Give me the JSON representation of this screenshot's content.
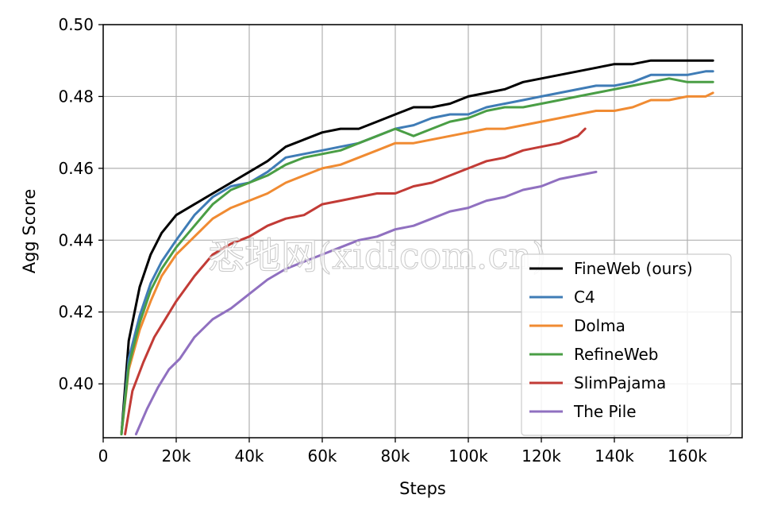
{
  "chart_data": {
    "type": "line",
    "xlabel": "Steps",
    "ylabel": "Agg Score",
    "xlim": [
      0,
      175000
    ],
    "ylim": [
      0.385,
      0.5
    ],
    "xticks": [
      0,
      20000,
      40000,
      60000,
      80000,
      100000,
      120000,
      140000,
      160000
    ],
    "xtick_labels": [
      "0",
      "20k",
      "40k",
      "60k",
      "80k",
      "100k",
      "120k",
      "140k",
      "160k"
    ],
    "yticks": [
      0.4,
      0.42,
      0.44,
      0.46,
      0.48,
      0.5
    ],
    "ytick_labels": [
      "0.40",
      "0.42",
      "0.44",
      "0.46",
      "0.48",
      "0.50"
    ],
    "grid": true,
    "legend_position": "bottom-right",
    "series": [
      {
        "name": "FineWeb (ours)",
        "color": "#000000",
        "x": [
          5000,
          7000,
          10000,
          13000,
          16000,
          20000,
          25000,
          30000,
          35000,
          40000,
          45000,
          50000,
          55000,
          60000,
          65000,
          70000,
          75000,
          80000,
          85000,
          90000,
          95000,
          100000,
          105000,
          110000,
          115000,
          120000,
          125000,
          130000,
          135000,
          140000,
          145000,
          150000,
          155000,
          160000,
          165000,
          167000
        ],
        "y": [
          0.386,
          0.412,
          0.427,
          0.436,
          0.442,
          0.447,
          0.45,
          0.453,
          0.456,
          0.459,
          0.462,
          0.466,
          0.468,
          0.47,
          0.471,
          0.471,
          0.473,
          0.475,
          0.477,
          0.477,
          0.478,
          0.48,
          0.481,
          0.482,
          0.484,
          0.485,
          0.486,
          0.487,
          0.488,
          0.489,
          0.489,
          0.49,
          0.49,
          0.49,
          0.49,
          0.49
        ]
      },
      {
        "name": "C4",
        "color": "#3f7cb6",
        "x": [
          5000,
          7000,
          10000,
          13000,
          16000,
          20000,
          25000,
          30000,
          35000,
          40000,
          45000,
          50000,
          55000,
          60000,
          65000,
          70000,
          75000,
          80000,
          85000,
          90000,
          95000,
          100000,
          105000,
          110000,
          115000,
          120000,
          125000,
          130000,
          135000,
          140000,
          145000,
          150000,
          155000,
          160000,
          165000,
          167000
        ],
        "y": [
          0.386,
          0.407,
          0.419,
          0.428,
          0.434,
          0.44,
          0.447,
          0.452,
          0.455,
          0.456,
          0.459,
          0.463,
          0.464,
          0.465,
          0.466,
          0.467,
          0.469,
          0.471,
          0.472,
          0.474,
          0.475,
          0.475,
          0.477,
          0.478,
          0.479,
          0.48,
          0.481,
          0.482,
          0.483,
          0.483,
          0.484,
          0.486,
          0.486,
          0.486,
          0.487,
          0.487
        ]
      },
      {
        "name": "Dolma",
        "color": "#f08b32",
        "x": [
          5000,
          7000,
          10000,
          13000,
          16000,
          20000,
          25000,
          30000,
          35000,
          40000,
          45000,
          50000,
          55000,
          60000,
          65000,
          70000,
          75000,
          80000,
          85000,
          90000,
          95000,
          100000,
          105000,
          110000,
          115000,
          120000,
          125000,
          130000,
          135000,
          140000,
          145000,
          150000,
          155000,
          160000,
          165000,
          167000
        ],
        "y": [
          0.386,
          0.404,
          0.415,
          0.423,
          0.43,
          0.436,
          0.441,
          0.446,
          0.449,
          0.451,
          0.453,
          0.456,
          0.458,
          0.46,
          0.461,
          0.463,
          0.465,
          0.467,
          0.467,
          0.468,
          0.469,
          0.47,
          0.471,
          0.471,
          0.472,
          0.473,
          0.474,
          0.475,
          0.476,
          0.476,
          0.477,
          0.479,
          0.479,
          0.48,
          0.48,
          0.481
        ]
      },
      {
        "name": "RefineWeb",
        "color": "#4a9e45",
        "x": [
          5000,
          7000,
          10000,
          13000,
          16000,
          20000,
          25000,
          30000,
          35000,
          40000,
          45000,
          50000,
          55000,
          60000,
          65000,
          70000,
          75000,
          80000,
          85000,
          90000,
          95000,
          100000,
          105000,
          110000,
          115000,
          120000,
          125000,
          130000,
          135000,
          140000,
          145000,
          150000,
          155000,
          160000,
          165000,
          167000
        ],
        "y": [
          0.386,
          0.405,
          0.417,
          0.426,
          0.432,
          0.438,
          0.444,
          0.45,
          0.454,
          0.456,
          0.458,
          0.461,
          0.463,
          0.464,
          0.465,
          0.467,
          0.469,
          0.471,
          0.469,
          0.471,
          0.473,
          0.474,
          0.476,
          0.477,
          0.477,
          0.478,
          0.479,
          0.48,
          0.481,
          0.482,
          0.483,
          0.484,
          0.485,
          0.484,
          0.484,
          0.484
        ]
      },
      {
        "name": "SlimPajama",
        "color": "#c23b36",
        "x": [
          6000,
          8000,
          11000,
          14000,
          17000,
          20000,
          25000,
          30000,
          35000,
          40000,
          45000,
          50000,
          55000,
          60000,
          65000,
          70000,
          75000,
          80000,
          85000,
          90000,
          95000,
          100000,
          105000,
          110000,
          115000,
          120000,
          125000,
          130000,
          132000
        ],
        "y": [
          0.386,
          0.398,
          0.406,
          0.413,
          0.418,
          0.423,
          0.43,
          0.436,
          0.439,
          0.441,
          0.444,
          0.446,
          0.447,
          0.45,
          0.451,
          0.452,
          0.453,
          0.453,
          0.455,
          0.456,
          0.458,
          0.46,
          0.462,
          0.463,
          0.465,
          0.466,
          0.467,
          0.469,
          0.471
        ]
      },
      {
        "name": "The Pile",
        "color": "#9070c0",
        "x": [
          9000,
          12000,
          15000,
          18000,
          21000,
          25000,
          30000,
          35000,
          40000,
          45000,
          50000,
          55000,
          60000,
          65000,
          70000,
          75000,
          80000,
          85000,
          90000,
          95000,
          100000,
          105000,
          110000,
          115000,
          120000,
          125000,
          130000,
          135000
        ],
        "y": [
          0.386,
          0.393,
          0.399,
          0.404,
          0.407,
          0.413,
          0.418,
          0.421,
          0.425,
          0.429,
          0.432,
          0.434,
          0.436,
          0.438,
          0.44,
          0.441,
          0.443,
          0.444,
          0.446,
          0.448,
          0.449,
          0.451,
          0.452,
          0.454,
          0.455,
          0.457,
          0.458,
          0.459
        ]
      }
    ]
  },
  "watermark": "悉地网(xidicom.cn)"
}
